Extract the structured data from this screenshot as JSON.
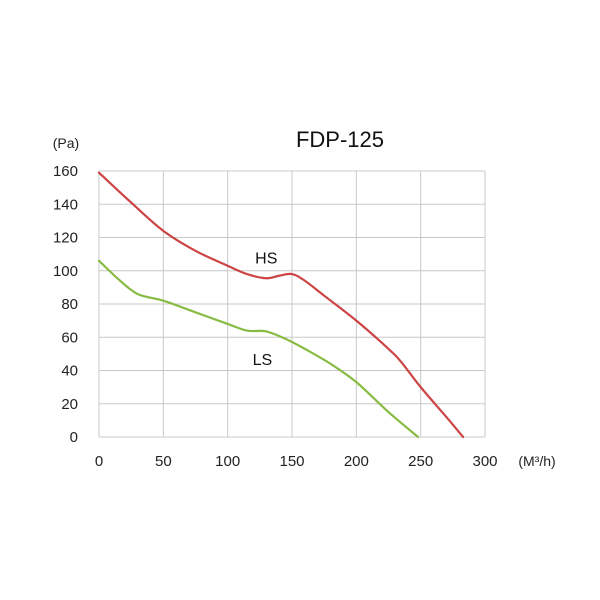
{
  "chart_data": {
    "type": "line",
    "title": "FDP-125",
    "ylabel": "(Pa)",
    "xlabel": "(M³/h)",
    "xlim": [
      0,
      300
    ],
    "ylim": [
      0,
      160
    ],
    "x_ticks": [
      0,
      50,
      100,
      150,
      200,
      250,
      300
    ],
    "y_ticks": [
      0,
      20,
      40,
      60,
      80,
      100,
      120,
      140,
      160
    ],
    "grid": true,
    "series": [
      {
        "name": "HS",
        "color": "#cc4444",
        "points": [
          [
            0,
            159
          ],
          [
            25,
            141
          ],
          [
            50,
            124
          ],
          [
            75,
            112
          ],
          [
            100,
            103
          ],
          [
            115,
            98
          ],
          [
            130,
            95.5
          ],
          [
            140,
            97
          ],
          [
            150,
            98
          ],
          [
            160,
            94
          ],
          [
            175,
            85
          ],
          [
            200,
            70
          ],
          [
            225,
            53
          ],
          [
            235,
            45
          ],
          [
            250,
            30
          ],
          [
            270,
            12
          ],
          [
            283,
            0
          ]
        ]
      },
      {
        "name": "LS",
        "color": "#88bb44",
        "points": [
          [
            0,
            106
          ],
          [
            15,
            95
          ],
          [
            30,
            86
          ],
          [
            50,
            82
          ],
          [
            75,
            75
          ],
          [
            100,
            68
          ],
          [
            115,
            64
          ],
          [
            130,
            63.5
          ],
          [
            145,
            59
          ],
          [
            160,
            53
          ],
          [
            180,
            44
          ],
          [
            200,
            33
          ],
          [
            225,
            15
          ],
          [
            248,
            0
          ]
        ]
      }
    ],
    "annotations": [
      {
        "text": "HS",
        "x": 130,
        "y": 108
      },
      {
        "text": "LS",
        "x": 127,
        "y": 47
      }
    ]
  }
}
